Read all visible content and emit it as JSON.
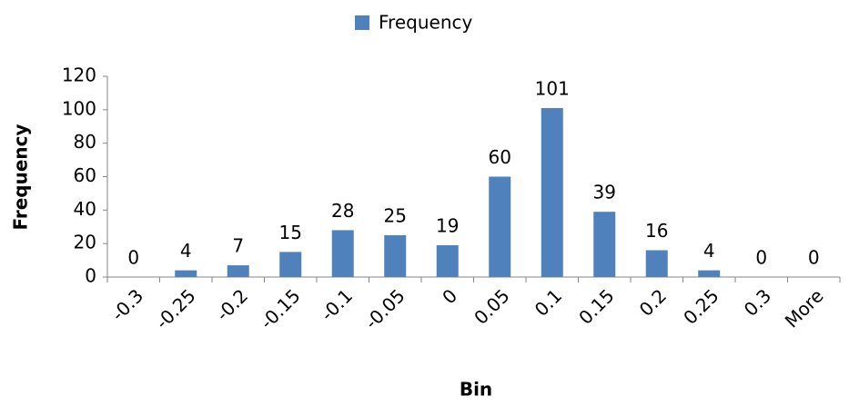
{
  "chart_data": {
    "type": "bar",
    "legend": "Frequency",
    "x_label": "Bin",
    "y_label": "Frequency",
    "categories": [
      "-0.3",
      "-0.25",
      "-0.2",
      "-0.15",
      "-0.1",
      "-0.05",
      "0",
      "0.05",
      "0.1",
      "0.15",
      "0.2",
      "0.25",
      "0.3",
      "More"
    ],
    "values": [
      0,
      4,
      7,
      15,
      28,
      25,
      19,
      60,
      101,
      39,
      16,
      4,
      0,
      0
    ],
    "color": "#4f81bd",
    "ylim": [
      0,
      120
    ],
    "yticks": [
      0,
      20,
      40,
      60,
      80,
      100,
      120
    ],
    "grid": false,
    "legend_position": "top"
  }
}
